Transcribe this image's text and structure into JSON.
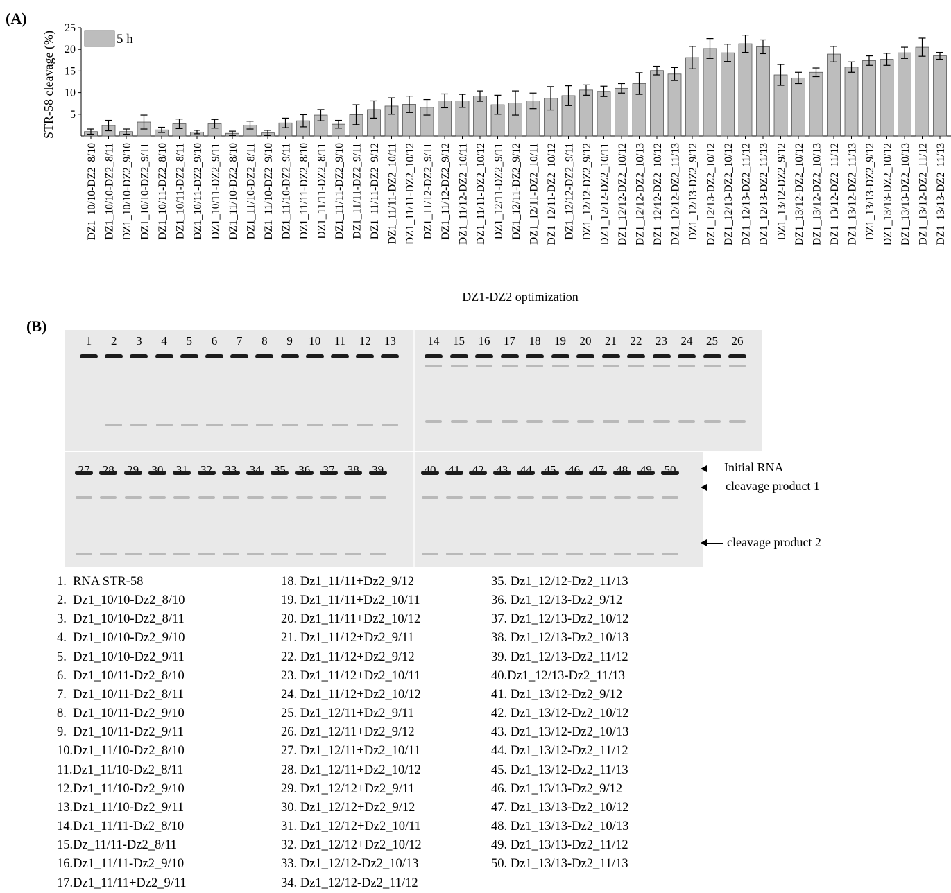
{
  "panel_a_label": "(A)",
  "panel_b_label": "(B)",
  "chart_data": {
    "type": "bar",
    "ylabel": "STR-58 cleavage (%)",
    "xlabel": "DZ1-DZ2 optimization",
    "ylim": [
      0,
      25
    ],
    "yticks": [
      5,
      10,
      15,
      20,
      25
    ],
    "legend": {
      "label": "5 h",
      "placement": "top-left"
    },
    "bar_color": "#bdbdbd",
    "categories": [
      "DZ1_10/10-DZ2_8/10",
      "DZ1_10/10-DZ2_8/11",
      "DZ1_10/10-DZ2_9/10",
      "DZ1_10/10-DZ2_9/11",
      "DZ1_10/11-DZ2_8/10",
      "DZ1_10/11-DZ2_8/11",
      "DZ1_10/11-DZ2_9/10",
      "DZ1_10/11-DZ2_9/11",
      "DZ1_11/10-DZ2_8/10",
      "DZ1_11/10-DZ2_8/11",
      "DZ1_11/10-DZ2_9/10",
      "DZ1_11/10-DZ2_9/11",
      "DZ1_11/11-DZ2_8/10",
      "DZ1_11/11-DZ2_8/11",
      "DZ1_11/11-DZ2_9/10",
      "DZ1_11/11-DZ2_9/11",
      "DZ1_11/11-DZ2_9/12",
      "DZ1_11/11-DZ2_10/11",
      "DZ1_11/11-DZ2_10/12",
      "DZ1_11/12-DZ2_9/11",
      "DZ1_11/12-DZ2_9/12",
      "DZ1_11/12-DZ2_10/11",
      "DZ1_11/11-DZ2_10/12",
      "DZ1_12/11-DZ2_9/11",
      "DZ1_12/11-DZ2_9/12",
      "DZ1_12/11-DZ2_10/11",
      "DZ1_12/11-DZ2_10/12",
      "DZ1_12/12-DZ2_9/11",
      "DZ1_12/12-DZ2_9/12",
      "DZ1_12/12-DZ2_10/11",
      "DZ1_12/12-DZ2_10/12",
      "DZ1_12/12-DZ2_10/13",
      "DZ1_12/12-DZ2_10/12",
      "DZ1_12/12-DZ2_11/13",
      "DZ1_12/13-DZ2_9/12",
      "DZ1_12/13-DZ2_10/12",
      "DZ1_12/13-DZ2_10/12",
      "DZ1_12/13-DZ2_11/12",
      "DZ1_12/13-DZ2_11/13",
      "DZ1_13/12-DZ2_9/12",
      "DZ1_13/12-DZ2_10/12",
      "DZ1_13/12-DZ2_10/13",
      "DZ1_13/12-DZ2_11/12",
      "DZ1_13/12-DZ2_11/13",
      "DZ1_13/13-DZ2_9/12",
      "DZ1_13/13-DZ2_10/12",
      "DZ1_13/13-DZ2_10/13",
      "DZ1_13/12-DZ2_11/12",
      "DZ1_13/13-DZ2_11/13"
    ],
    "values": [
      1.0,
      2.4,
      1.0,
      3.2,
      1.4,
      2.8,
      0.9,
      2.8,
      0.6,
      2.5,
      0.7,
      3.0,
      3.5,
      4.8,
      2.7,
      4.9,
      6.1,
      6.9,
      7.3,
      6.6,
      8.1,
      8.1,
      9.2,
      7.2,
      7.6,
      8.1,
      8.7,
      9.3,
      10.6,
      10.3,
      11.0,
      12.1,
      15.1,
      14.3,
      18.1,
      20.2,
      19.2,
      21.3,
      20.6,
      14.1,
      13.4,
      14.7,
      18.9,
      15.9,
      17.4,
      17.7,
      19.2,
      20.5,
      18.5
    ],
    "errors": [
      0.6,
      1.2,
      0.6,
      1.6,
      0.6,
      1.1,
      0.4,
      1.0,
      0.5,
      0.9,
      0.6,
      1.1,
      1.4,
      1.3,
      0.9,
      2.3,
      2.0,
      1.9,
      1.9,
      1.8,
      1.6,
      1.5,
      1.2,
      2.2,
      2.8,
      1.8,
      2.7,
      2.3,
      1.2,
      1.2,
      1.1,
      2.5,
      1.0,
      1.5,
      2.6,
      2.3,
      2.0,
      2.0,
      1.6,
      2.4,
      1.3,
      1.0,
      1.8,
      1.2,
      1.1,
      1.4,
      1.3,
      2.1,
      0.8
    ]
  },
  "gel": {
    "top_lanes": [
      "1",
      "2",
      "3",
      "4",
      "5",
      "6",
      "7",
      "8",
      "9",
      "10",
      "11",
      "12",
      "13",
      "14",
      "15",
      "16",
      "17",
      "18",
      "19",
      "20",
      "21",
      "22",
      "23",
      "24",
      "25",
      "26"
    ],
    "bottom_lanes": [
      "27",
      "28",
      "29",
      "30",
      "31",
      "32",
      "33",
      "34",
      "35",
      "36",
      "37",
      "38",
      "39",
      "40",
      "41",
      "42",
      "43",
      "44",
      "45",
      "46",
      "47",
      "48",
      "49",
      "50"
    ],
    "annotations": {
      "initial_rna": "Initial RNA",
      "product1": "cleavage product 1",
      "product2": "cleavage product 2"
    }
  },
  "lane_legend": [
    [
      "1.  RNA STR-58",
      "2.  Dz1_10/10-Dz2_8/10",
      "3.  Dz1_10/10-Dz2_8/11",
      "4.  Dz1_10/10-Dz2_9/10",
      "5.  Dz1_10/10-Dz2_9/11",
      "6.  Dz1_10/11-Dz2_8/10",
      "7.  Dz1_10/11-Dz2_8/11",
      "8.  Dz1_10/11-Dz2_9/10",
      "9.  Dz1_10/11-Dz2_9/11",
      "10.Dz1_11/10-Dz2_8/10",
      "11.Dz1_11/10-Dz2_8/11",
      "12.Dz1_11/10-Dz2_9/10",
      "13.Dz1_11/10-Dz2_9/11",
      "14.Dz1_11/11-Dz2_8/10",
      "15.Dz_11/11-Dz2_8/11",
      "16.Dz1_11/11-Dz2_9/10",
      "17.Dz1_11/11+Dz2_9/11"
    ],
    [
      "18. Dz1_11/11+Dz2_9/12",
      "19. Dz1_11/11+Dz2_10/11",
      "20. Dz1_11/11+Dz2_10/12",
      "21. Dz1_11/12+Dz2_9/11",
      "22. Dz1_11/12+Dz2_9/12",
      "23. Dz1_11/12+Dz2_10/11",
      "24. Dz1_11/12+Dz2_10/12",
      "25. Dz1_12/11+Dz2_9/11",
      "26. Dz1_12/11+Dz2_9/12",
      "27. Dz1_12/11+Dz2_10/11",
      "28. Dz1_12/11+Dz2_10/12",
      "29. Dz1_12/12+Dz2_9/11",
      "30. Dz1_12/12+Dz2_9/12",
      "31. Dz1_12/12+Dz2_10/11",
      "32. Dz1_12/12+Dz2_10/12",
      "33. Dz1_12/12-Dz2_10/13",
      "34. Dz1_12/12-Dz2_11/12"
    ],
    [
      "35. Dz1_12/12-Dz2_11/13",
      "36. Dz1_12/13-Dz2_9/12",
      "37. Dz1_12/13-Dz2_10/12",
      "38. Dz1_12/13-Dz2_10/13",
      "39. Dz1_12/13-Dz2_11/12",
      "40.Dz1_12/13-Dz2_11/13",
      "41. Dz1_13/12-Dz2_9/12",
      "42. Dz1_13/12-Dz2_10/12",
      "43. Dz1_13/12-Dz2_10/13",
      "44. Dz1_13/12-Dz2_11/12",
      "45. Dz1_13/12-Dz2_11/13",
      "46. Dz1_13/13-Dz2_9/12",
      "47. Dz1_13/13-Dz2_10/12",
      "48. Dz1_13/13-Dz2_10/13",
      "49. Dz1_13/13-Dz2_11/12",
      "50. Dz1_13/13-Dz2_11/13"
    ]
  ]
}
